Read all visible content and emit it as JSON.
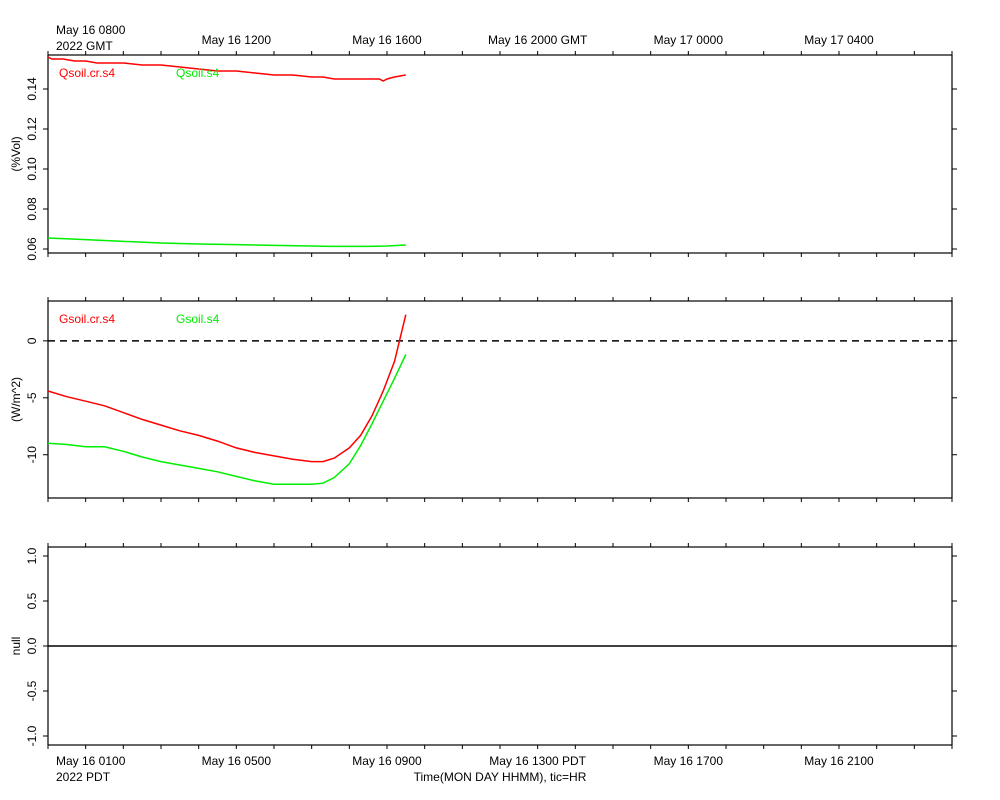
{
  "time_axis": {
    "top_labels": [
      "May 16 0800",
      "May 16 1200",
      "May 16 1600",
      "May 16 2000 GMT",
      "May 17 0000",
      "May 17 0400"
    ],
    "top_year": "2022 GMT",
    "bottom_labels": [
      "May 16 0100",
      "May 16 0500",
      "May 16 0900",
      "May 16 1300 PDT",
      "May 16 1700",
      "May 16 2100"
    ],
    "bottom_year": "2022 PDT",
    "xlabel": "Time(MON DAY HHMM), tic=HR",
    "x_range_hours": [
      -1,
      23
    ],
    "label_hours": [
      0,
      4,
      8,
      12,
      16,
      20
    ]
  },
  "chart_data": [
    {
      "type": "line",
      "ylabel": "(%Vol)",
      "ylim": [
        0.058,
        0.157
      ],
      "yticks": [
        0.06,
        0.08,
        0.1,
        0.12,
        0.14
      ],
      "yticklabels": [
        "0.06",
        "0.08",
        "0.10",
        "0.12",
        "0.14"
      ],
      "series": [
        {
          "name": "Qsoil.cr.s4",
          "color": "#ff0000",
          "x": [
            -1.0,
            -0.9,
            -0.6,
            -0.3,
            0.0,
            0.3,
            0.7,
            1.0,
            1.5,
            2.0,
            2.5,
            3.0,
            3.5,
            4.0,
            4.5,
            5.0,
            5.5,
            6.0,
            6.3,
            6.6,
            6.9,
            7.2,
            7.5,
            7.8,
            7.9,
            8.0,
            8.2,
            8.5
          ],
          "values": [
            0.156,
            0.155,
            0.155,
            0.154,
            0.154,
            0.153,
            0.153,
            0.153,
            0.152,
            0.152,
            0.151,
            0.15,
            0.149,
            0.149,
            0.148,
            0.147,
            0.147,
            0.146,
            0.146,
            0.145,
            0.145,
            0.145,
            0.145,
            0.145,
            0.144,
            0.145,
            0.146,
            0.147
          ]
        },
        {
          "name": "Qsoil.s4",
          "color": "#00ee00",
          "x": [
            -1.0,
            0.0,
            1.0,
            2.0,
            3.0,
            4.0,
            5.0,
            6.0,
            6.5,
            7.0,
            7.5,
            8.0,
            8.5
          ],
          "values": [
            0.0655,
            0.0647,
            0.0638,
            0.063,
            0.0625,
            0.0622,
            0.0618,
            0.0615,
            0.0613,
            0.0613,
            0.0613,
            0.0615,
            0.062
          ]
        }
      ]
    },
    {
      "type": "line",
      "ylabel": "(W/m^2)",
      "ylim": [
        -13.8,
        3.5
      ],
      "yticks": [
        -10,
        -5,
        0
      ],
      "yticklabels": [
        "-10",
        "-5",
        "0"
      ],
      "zero_line": "dashed",
      "series": [
        {
          "name": "Gsoil.cr.s4",
          "color": "#ff0000",
          "x": [
            -1.0,
            -0.5,
            0.0,
            0.5,
            1.0,
            1.5,
            2.0,
            2.5,
            3.0,
            3.5,
            4.0,
            4.5,
            5.0,
            5.5,
            6.0,
            6.3,
            6.6,
            7.0,
            7.3,
            7.6,
            7.9,
            8.2,
            8.5
          ],
          "values": [
            -4.4,
            -4.9,
            -5.3,
            -5.7,
            -6.3,
            -6.9,
            -7.4,
            -7.9,
            -8.3,
            -8.8,
            -9.4,
            -9.8,
            -10.1,
            -10.4,
            -10.6,
            -10.6,
            -10.3,
            -9.4,
            -8.3,
            -6.6,
            -4.4,
            -1.8,
            2.3
          ]
        },
        {
          "name": "Gsoil.s4",
          "color": "#00ee00",
          "x": [
            -1.0,
            -0.5,
            0.0,
            0.5,
            1.0,
            1.5,
            2.0,
            2.5,
            3.0,
            3.5,
            4.0,
            4.5,
            5.0,
            5.5,
            6.0,
            6.3,
            6.6,
            7.0,
            7.3,
            7.6,
            7.9,
            8.2,
            8.5
          ],
          "values": [
            -9.0,
            -9.1,
            -9.3,
            -9.3,
            -9.7,
            -10.2,
            -10.6,
            -10.9,
            -11.2,
            -11.5,
            -11.9,
            -12.3,
            -12.6,
            -12.6,
            -12.6,
            -12.5,
            -12.0,
            -10.8,
            -9.2,
            -7.3,
            -5.3,
            -3.3,
            -1.2
          ]
        }
      ]
    },
    {
      "type": "line",
      "ylabel": "null",
      "ylim": [
        -1.1,
        1.1
      ],
      "yticks": [
        -1.0,
        -0.5,
        0.0,
        0.5,
        1.0
      ],
      "yticklabels": [
        "-1.0",
        "-0.5",
        "0.0",
        "0.5",
        "1.0"
      ],
      "zero_line": "solid",
      "series": []
    }
  ]
}
